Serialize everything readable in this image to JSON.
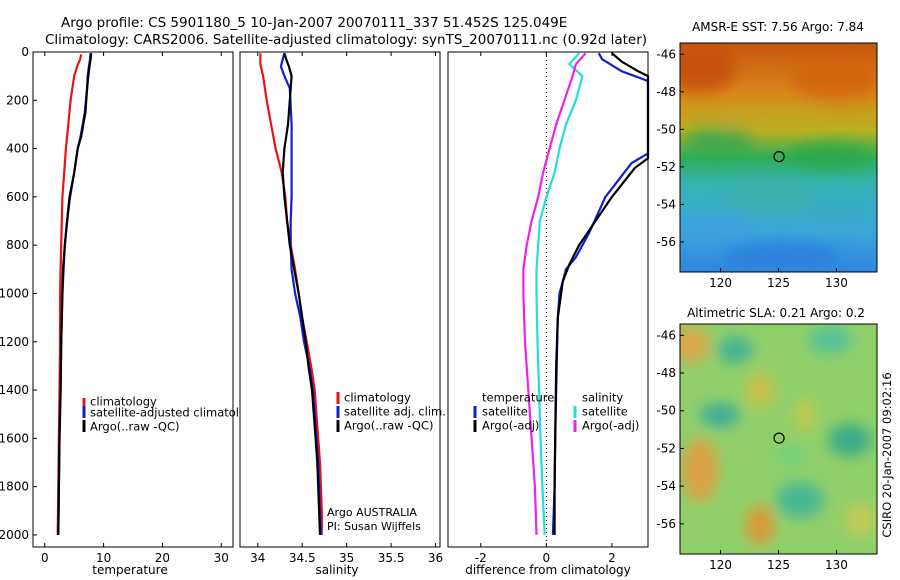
{
  "header": {
    "line1": "Argo profile: CS 5901180_5 10-Jan-2007 20070111_337 51.452S 125.049E",
    "line2": "Climatology: CARS2006. Satellite-adjusted climatology: synTS_20070111.nc (0.92d later)"
  },
  "side_label": "CSIRO 20-Jan-2007 09:02:16",
  "colors": {
    "red": "#ee1111",
    "blue": "#1020d0",
    "black": "#000000",
    "cyan": "#22dddd",
    "magenta": "#ee22ee"
  },
  "chart_data": [
    {
      "id": "temperature",
      "type": "line",
      "xlabel": "temperature",
      "ylabel": "",
      "xlim": [
        -2,
        32
      ],
      "ylim": [
        2050,
        0
      ],
      "xticks": [
        "0",
        "10",
        "20",
        "30"
      ],
      "xtick_values": [
        0,
        10,
        20,
        30
      ],
      "yticks": [
        "0",
        "200",
        "400",
        "600",
        "800",
        "1000",
        "1200",
        "1400",
        "1600",
        "1800",
        "2000"
      ],
      "ytick_values": [
        0,
        200,
        400,
        600,
        800,
        1000,
        1200,
        1400,
        1600,
        1800,
        2000
      ],
      "legend": [
        "climatology",
        "satellite-adjusted climatology",
        "Argo(..raw -QC)"
      ],
      "annotations": [],
      "series": [
        {
          "name": "climatology",
          "color": "red",
          "points": [
            [
              6.2,
              10
            ],
            [
              6.0,
              30
            ],
            [
              5.5,
              60
            ],
            [
              5.0,
              100
            ],
            [
              4.7,
              150
            ],
            [
              4.4,
              200
            ],
            [
              4.0,
              300
            ],
            [
              3.6,
              400
            ],
            [
              3.3,
              500
            ],
            [
              3.0,
              600
            ],
            [
              2.9,
              700
            ],
            [
              2.8,
              800
            ],
            [
              2.7,
              900
            ],
            [
              2.6,
              1000
            ],
            [
              2.6,
              1200
            ],
            [
              2.5,
              1400
            ],
            [
              2.4,
              1600
            ],
            [
              2.3,
              1800
            ],
            [
              2.2,
              2000
            ]
          ]
        },
        {
          "name": "satellite-adjusted climatology",
          "color": "blue",
          "points": [
            [
              7.8,
              5
            ],
            [
              7.7,
              30
            ],
            [
              7.5,
              60
            ],
            [
              7.3,
              100
            ],
            [
              7.2,
              150
            ],
            [
              6.8,
              250
            ],
            [
              6.1,
              350
            ],
            [
              5.6,
              400
            ],
            [
              5.0,
              500
            ],
            [
              4.3,
              600
            ],
            [
              3.8,
              700
            ],
            [
              3.4,
              800
            ],
            [
              3.2,
              900
            ],
            [
              3.0,
              1000
            ],
            [
              2.8,
              1200
            ],
            [
              2.7,
              1400
            ],
            [
              2.5,
              1600
            ],
            [
              2.4,
              1800
            ],
            [
              2.3,
              2000
            ]
          ]
        },
        {
          "name": "Argo(..raw -QC)",
          "color": "black",
          "points": [
            [
              7.9,
              5
            ],
            [
              7.8,
              30
            ],
            [
              7.6,
              60
            ],
            [
              7.4,
              100
            ],
            [
              7.2,
              150
            ],
            [
              6.9,
              250
            ],
            [
              6.2,
              350
            ],
            [
              5.6,
              400
            ],
            [
              5.0,
              500
            ],
            [
              4.2,
              600
            ],
            [
              3.8,
              700
            ],
            [
              3.4,
              800
            ],
            [
              3.1,
              900
            ],
            [
              3.0,
              1000
            ],
            [
              2.8,
              1200
            ],
            [
              2.7,
              1400
            ],
            [
              2.5,
              1600
            ],
            [
              2.4,
              1800
            ],
            [
              2.3,
              2000
            ]
          ]
        }
      ]
    },
    {
      "id": "salinity",
      "type": "line",
      "xlabel": "salinity",
      "ylabel": "",
      "xlim": [
        33.8,
        36.05
      ],
      "ylim": [
        2050,
        0
      ],
      "xticks": [
        "34",
        "34.5",
        "35",
        "35.5",
        "36"
      ],
      "xtick_values": [
        34,
        34.5,
        35,
        35.5,
        36
      ],
      "yticks": [],
      "ytick_values": [],
      "legend": [
        "climatology",
        "satellite adj. clim.",
        "Argo(..raw -QC)"
      ],
      "annotations": [
        "Argo AUSTRALIA",
        "PI: Susan Wijffels"
      ],
      "series": [
        {
          "name": "climatology",
          "color": "red",
          "points": [
            [
              34.03,
              5
            ],
            [
              34.03,
              50
            ],
            [
              34.06,
              100
            ],
            [
              34.1,
              200
            ],
            [
              34.15,
              300
            ],
            [
              34.2,
              400
            ],
            [
              34.27,
              500
            ],
            [
              34.31,
              600
            ],
            [
              34.33,
              700
            ],
            [
              34.37,
              800
            ],
            [
              34.42,
              900
            ],
            [
              34.46,
              1000
            ],
            [
              34.5,
              1100
            ],
            [
              34.55,
              1200
            ],
            [
              34.6,
              1300
            ],
            [
              34.64,
              1400
            ],
            [
              34.66,
              1500
            ],
            [
              34.68,
              1600
            ],
            [
              34.7,
              1700
            ],
            [
              34.71,
              1800
            ],
            [
              34.72,
              1900
            ],
            [
              34.72,
              2000
            ]
          ]
        },
        {
          "name": "satellite adj. clim.",
          "color": "blue",
          "points": [
            [
              34.3,
              5
            ],
            [
              34.28,
              30
            ],
            [
              34.26,
              60
            ],
            [
              34.3,
              100
            ],
            [
              34.36,
              150
            ],
            [
              34.38,
              300
            ],
            [
              34.38,
              400
            ],
            [
              34.38,
              500
            ],
            [
              34.38,
              600
            ],
            [
              34.37,
              700
            ],
            [
              34.37,
              800
            ],
            [
              34.38,
              900
            ],
            [
              34.42,
              1000
            ],
            [
              34.48,
              1100
            ],
            [
              34.52,
              1200
            ],
            [
              34.58,
              1300
            ],
            [
              34.62,
              1400
            ],
            [
              34.64,
              1500
            ],
            [
              34.66,
              1600
            ],
            [
              34.68,
              1700
            ],
            [
              34.69,
              1800
            ],
            [
              34.7,
              1900
            ],
            [
              34.71,
              2000
            ]
          ]
        },
        {
          "name": "Argo(..raw -QC)",
          "color": "black",
          "points": [
            [
              34.3,
              5
            ],
            [
              34.32,
              30
            ],
            [
              34.35,
              60
            ],
            [
              34.38,
              100
            ],
            [
              34.36,
              200
            ],
            [
              34.34,
              300
            ],
            [
              34.3,
              400
            ],
            [
              34.28,
              500
            ],
            [
              34.3,
              600
            ],
            [
              34.33,
              700
            ],
            [
              34.36,
              800
            ],
            [
              34.41,
              900
            ],
            [
              34.46,
              1000
            ],
            [
              34.5,
              1100
            ],
            [
              34.54,
              1200
            ],
            [
              34.57,
              1300
            ],
            [
              34.61,
              1400
            ],
            [
              34.63,
              1500
            ],
            [
              34.65,
              1600
            ],
            [
              34.67,
              1700
            ],
            [
              34.68,
              1800
            ],
            [
              34.69,
              1900
            ],
            [
              34.7,
              2000
            ]
          ]
        }
      ]
    },
    {
      "id": "difference",
      "type": "line",
      "xlabel": "difference from climatology",
      "ylabel": "",
      "xlim": [
        -3,
        3.1
      ],
      "ylim": [
        2050,
        0
      ],
      "xticks": [
        "-2",
        "0",
        "2"
      ],
      "xtick_values": [
        -2,
        0,
        2
      ],
      "yticks": [],
      "ytick_values": [],
      "legend": [
        "temperature",
        "satellite",
        "Argo(-adj)",
        "salinity",
        "satellite",
        "Argo(-adj)"
      ],
      "annotations": [],
      "series": [
        {
          "name": "satellite",
          "color": "blue",
          "points": [
            [
              1.6,
              5
            ],
            [
              1.7,
              30
            ],
            [
              2.3,
              80
            ],
            [
              3.1,
              120
            ],
            [
              3.1,
              420
            ],
            [
              2.6,
              460
            ],
            [
              1.8,
              600
            ],
            [
              1.3,
              750
            ],
            [
              0.9,
              850
            ],
            [
              0.6,
              900
            ],
            [
              0.4,
              1000
            ],
            [
              0.35,
              1100
            ],
            [
              0.33,
              1200
            ],
            [
              0.3,
              1400
            ],
            [
              0.27,
              1600
            ],
            [
              0.25,
              1800
            ],
            [
              0.2,
              2000
            ]
          ]
        },
        {
          "name": "Argo(-adj)",
          "color": "black",
          "points": [
            [
              2.0,
              5
            ],
            [
              2.3,
              40
            ],
            [
              2.8,
              80
            ],
            [
              3.1,
              100
            ],
            [
              3.1,
              440
            ],
            [
              2.7,
              480
            ],
            [
              2.0,
              600
            ],
            [
              1.5,
              700
            ],
            [
              1.0,
              800
            ],
            [
              0.7,
              880
            ],
            [
              0.5,
              950
            ],
            [
              0.35,
              1100
            ],
            [
              0.3,
              1300
            ],
            [
              0.27,
              1600
            ],
            [
              0.25,
              1800
            ],
            [
              0.25,
              2000
            ]
          ]
        },
        {
          "name": "satellite",
          "color": "cyan",
          "points": [
            [
              1.0,
              5
            ],
            [
              0.7,
              50
            ],
            [
              1.1,
              100
            ],
            [
              0.9,
              200
            ],
            [
              0.6,
              300
            ],
            [
              0.4,
              400
            ],
            [
              0.25,
              500
            ],
            [
              0.0,
              600
            ],
            [
              -0.2,
              700
            ],
            [
              -0.25,
              800
            ],
            [
              -0.3,
              900
            ],
            [
              -0.3,
              1000
            ],
            [
              -0.27,
              1200
            ],
            [
              -0.22,
              1400
            ],
            [
              -0.18,
              1600
            ],
            [
              -0.12,
              1800
            ],
            [
              -0.05,
              2000
            ]
          ]
        },
        {
          "name": "Argo(-adj)",
          "color": "magenta",
          "points": [
            [
              1.2,
              5
            ],
            [
              0.9,
              50
            ],
            [
              0.8,
              100
            ],
            [
              0.55,
              200
            ],
            [
              0.3,
              300
            ],
            [
              0.1,
              400
            ],
            [
              -0.1,
              500
            ],
            [
              -0.25,
              600
            ],
            [
              -0.45,
              700
            ],
            [
              -0.6,
              800
            ],
            [
              -0.7,
              900
            ],
            [
              -0.7,
              1000
            ],
            [
              -0.65,
              1200
            ],
            [
              -0.55,
              1400
            ],
            [
              -0.45,
              1600
            ],
            [
              -0.35,
              1800
            ],
            [
              -0.3,
              2000
            ]
          ]
        }
      ]
    },
    {
      "id": "sst_map",
      "type": "heatmap",
      "title": "AMSR-E SST: 7.56 Argo: 7.84",
      "xlim": [
        116.5,
        133.5
      ],
      "ylim": [
        -57.6,
        -45.4
      ],
      "xticks": [
        "120",
        "125",
        "130"
      ],
      "xtick_values": [
        120,
        125,
        130
      ],
      "yticks": [
        "-46",
        "-48",
        "-50",
        "-52",
        "-54",
        "-56"
      ],
      "ytick_values": [
        -46,
        -48,
        -50,
        -52,
        -54,
        -56
      ],
      "marker": [
        125.049,
        -51.452
      ]
    },
    {
      "id": "sla_map",
      "type": "heatmap",
      "title": "Altimetric SLA: 0.21 Argo: 0.2",
      "xlim": [
        116.5,
        133.5
      ],
      "ylim": [
        -57.6,
        -45.4
      ],
      "xticks": [
        "120",
        "125",
        "130"
      ],
      "xtick_values": [
        120,
        125,
        130
      ],
      "yticks": [
        "-46",
        "-48",
        "-50",
        "-52",
        "-54",
        "-56"
      ],
      "ytick_values": [
        -46,
        -48,
        -50,
        -52,
        -54,
        -56
      ],
      "marker": [
        125.049,
        -51.452
      ]
    }
  ]
}
